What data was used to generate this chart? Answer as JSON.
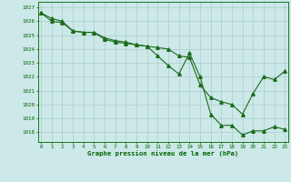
{
  "line1_x": [
    0,
    1,
    2,
    3,
    4,
    5,
    6,
    7,
    8,
    9,
    10,
    11,
    12,
    13,
    14,
    15,
    16,
    17,
    18,
    19,
    20,
    21,
    22,
    23
  ],
  "line1_y": [
    1026.6,
    1026.2,
    1026.0,
    1025.3,
    1025.2,
    1025.2,
    1024.8,
    1024.6,
    1024.5,
    1024.3,
    1024.2,
    1023.5,
    1022.8,
    1022.2,
    1023.7,
    1022.0,
    1019.3,
    1018.5,
    1018.5,
    1017.8,
    1018.1,
    1018.1,
    1018.4,
    1018.2
  ],
  "line2_x": [
    0,
    1,
    2,
    3,
    4,
    5,
    6,
    7,
    8,
    9,
    10,
    11,
    12,
    13,
    14,
    15,
    16,
    17,
    18,
    19,
    20,
    21,
    22,
    23
  ],
  "line2_y": [
    1026.6,
    1026.0,
    1025.9,
    1025.3,
    1025.2,
    1025.2,
    1024.7,
    1024.5,
    1024.4,
    1024.3,
    1024.2,
    1024.1,
    1024.0,
    1023.5,
    1023.4,
    1021.4,
    1020.5,
    1020.2,
    1020.0,
    1019.3,
    1020.8,
    1022.0,
    1021.8,
    1022.4
  ],
  "line_color": "#1a6b1a",
  "marker": "^",
  "bg_color": "#cce8e8",
  "grid_color": "#aacccc",
  "axis_color": "#006600",
  "label_color": "#006600",
  "xlabel": "Graphe pression niveau de la mer (hPa)",
  "yticks": [
    1018,
    1019,
    1020,
    1021,
    1022,
    1023,
    1024,
    1025,
    1026,
    1027
  ],
  "xticks": [
    0,
    1,
    2,
    3,
    4,
    5,
    6,
    7,
    8,
    9,
    10,
    11,
    12,
    13,
    14,
    15,
    16,
    17,
    18,
    19,
    20,
    21,
    22,
    23
  ],
  "ylim": [
    1017.3,
    1027.4
  ],
  "xlim": [
    -0.3,
    23.3
  ],
  "figsize": [
    3.2,
    2.0
  ],
  "dpi": 100
}
